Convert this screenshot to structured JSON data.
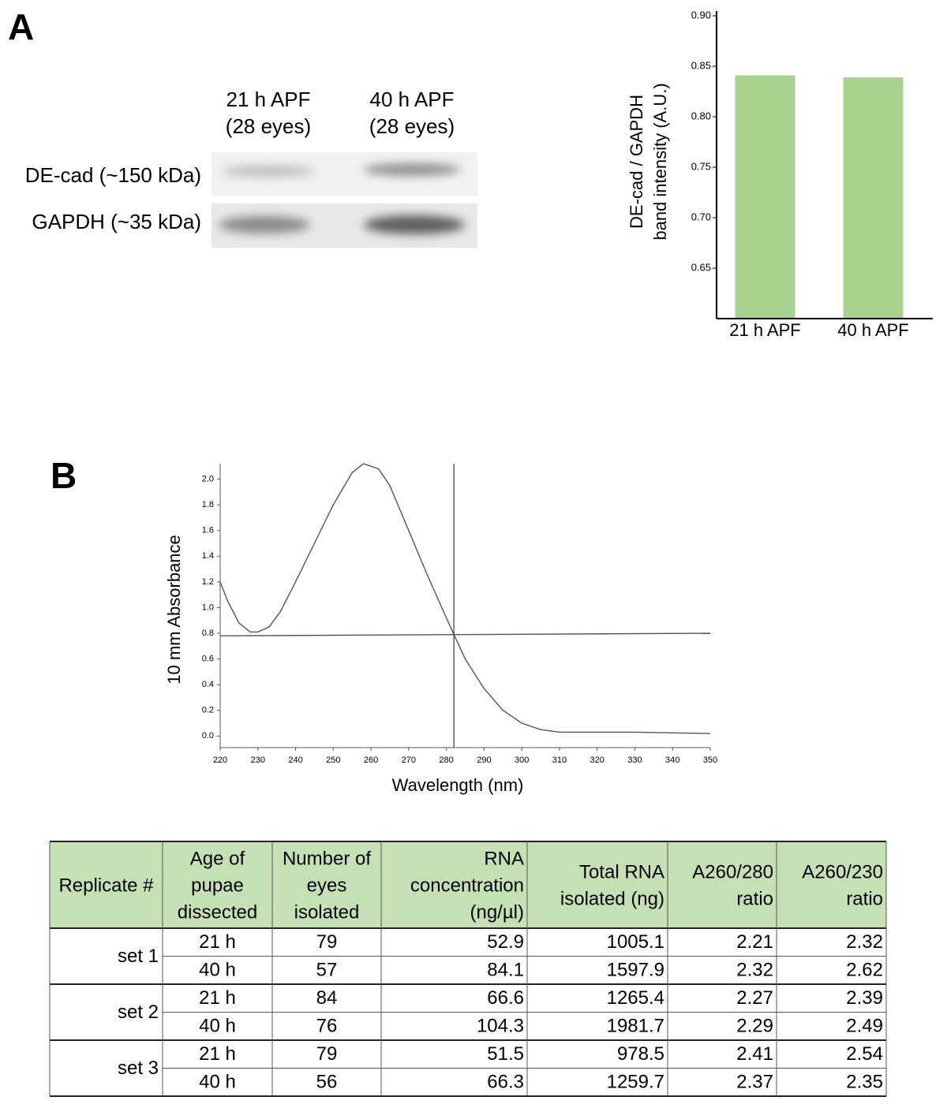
{
  "panel_labels": [
    "A",
    "B"
  ],
  "blot": {
    "lanes": [
      [
        "21 h APF",
        "(28 eyes)"
      ],
      [
        "40 h APF",
        "(28 eyes)"
      ]
    ],
    "rows": [
      "DE-cad (~150 kDa)",
      "GAPDH (~35 kDa)"
    ]
  },
  "chart_data": [
    {
      "type": "bar",
      "ylabel": [
        "DE-cad / GAPDH",
        "band intensity (A.U.)"
      ],
      "categories": [
        "21 h APF",
        "40 h APF"
      ],
      "values": [
        0.841,
        0.839
      ],
      "color": "#a9d18e",
      "ylim": [
        0.6,
        0.9
      ],
      "yticks": [
        0.65,
        {
          "value": 0.7,
          "label": "0.70"
        },
        0.75,
        {
          "value": 0.8,
          "label": "0.80"
        },
        0.85,
        {
          "value": 0.9,
          "label": "0.90"
        }
      ]
    },
    {
      "type": "line",
      "xlabel": "Wavelength (nm)",
      "ylabel": "10 mm Absorbance",
      "xlim": [
        220,
        350
      ],
      "xticks": [
        220,
        230,
        240,
        250,
        260,
        270,
        280,
        290,
        300,
        310,
        320,
        330,
        340,
        350
      ],
      "ylim": [
        -0.09,
        2.12
      ],
      "yticks": [
        {
          "value": 0,
          "label": "0.0"
        },
        0.2,
        0.4,
        0.6,
        0.8,
        {
          "value": 1,
          "label": "1.0"
        },
        1.2,
        1.4,
        1.6,
        1.8,
        {
          "value": 2,
          "label": "2.0"
        }
      ],
      "color": "#555555",
      "vline_x": 282,
      "series": [
        {
          "x": [
            220,
            222,
            225,
            228,
            230,
            233,
            236,
            240,
            245,
            250,
            255,
            258,
            262,
            265,
            270,
            275,
            280,
            282,
            285,
            290,
            295,
            300,
            305,
            310,
            320,
            330,
            340,
            350
          ],
          "values": [
            1.2,
            1.05,
            0.88,
            0.81,
            0.81,
            0.85,
            0.97,
            1.2,
            1.5,
            1.8,
            2.05,
            2.12,
            2.08,
            1.95,
            1.6,
            1.25,
            0.92,
            0.79,
            0.6,
            0.37,
            0.2,
            0.1,
            0.05,
            0.03,
            0.03,
            0.03,
            0.025,
            0.02
          ]
        },
        {
          "x": [
            220,
            350
          ],
          "values": [
            0.78,
            0.8
          ]
        }
      ]
    }
  ],
  "table": {
    "header": [
      [
        "Replicate #"
      ],
      [
        "Age of",
        "pupae",
        "dissected"
      ],
      [
        "Number of",
        "eyes",
        "isolated"
      ],
      [
        "RNA",
        "concentration",
        "(ng/µl)"
      ],
      [
        "Total RNA",
        "isolated (ng)"
      ],
      [
        "A260/280",
        "ratio"
      ],
      [
        "A260/230",
        "ratio"
      ]
    ],
    "groups": [
      {
        "name": "set 1",
        "rows": [
          [
            "21 h",
            "79",
            "52.9",
            "1005.1",
            "2.21",
            "2.32"
          ],
          [
            "40 h",
            "57",
            "84.1",
            "1597.9",
            "2.32",
            "2.62"
          ]
        ]
      },
      {
        "name": "set 2",
        "rows": [
          [
            "21 h",
            "84",
            "66.6",
            "1265.4",
            "2.27",
            "2.39"
          ],
          [
            "40 h",
            "76",
            "104.3",
            "1981.7",
            "2.29",
            "2.49"
          ]
        ]
      },
      {
        "name": "set 3",
        "rows": [
          [
            "21 h",
            "79",
            "51.5",
            "978.5",
            "2.41",
            "2.54"
          ],
          [
            "40 h",
            "56",
            "66.3",
            "1259.7",
            "2.37",
            "2.35"
          ]
        ]
      }
    ]
  }
}
